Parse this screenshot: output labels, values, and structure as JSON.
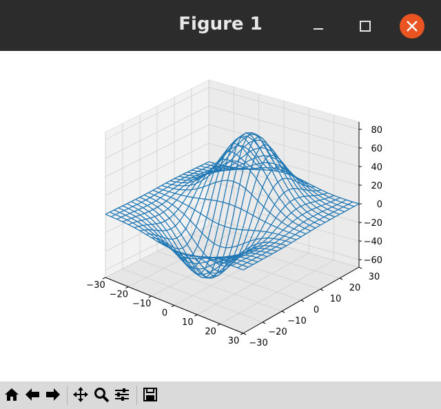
{
  "window": {
    "title": "Figure 1",
    "titlebar_color": "#2c2c2c",
    "close_color": "#e95420"
  },
  "toolbar": {
    "buttons": [
      "home-icon",
      "back-arrow-icon",
      "forward-arrow-icon",
      "pan-icon",
      "zoom-icon",
      "configure-subplots-icon",
      "save-icon"
    ]
  },
  "chart_data": {
    "type": "wireframe-3d",
    "title": "",
    "xlabel": "",
    "ylabel": "",
    "zlabel": "",
    "x_ticks": [
      -30,
      -20,
      -10,
      0,
      10,
      20,
      30
    ],
    "y_ticks": [
      -30,
      -20,
      -10,
      0,
      10,
      20,
      30
    ],
    "z_ticks": [
      -60,
      -40,
      -20,
      0,
      20,
      40,
      60,
      80
    ],
    "xlim": [
      -30,
      30
    ],
    "ylim": [
      -30,
      30
    ],
    "zlim": [
      -68,
      88
    ],
    "grid": true,
    "line_color": "#1f77b4",
    "surface": {
      "x_range": [
        -30,
        30
      ],
      "y_range": [
        -30,
        30
      ],
      "step": 2.5,
      "peak": {
        "x": 0,
        "y": 10,
        "z": 80,
        "spread": 10
      },
      "trough": {
        "x": 0,
        "y": -10,
        "z": -65,
        "spread": 10
      }
    }
  }
}
